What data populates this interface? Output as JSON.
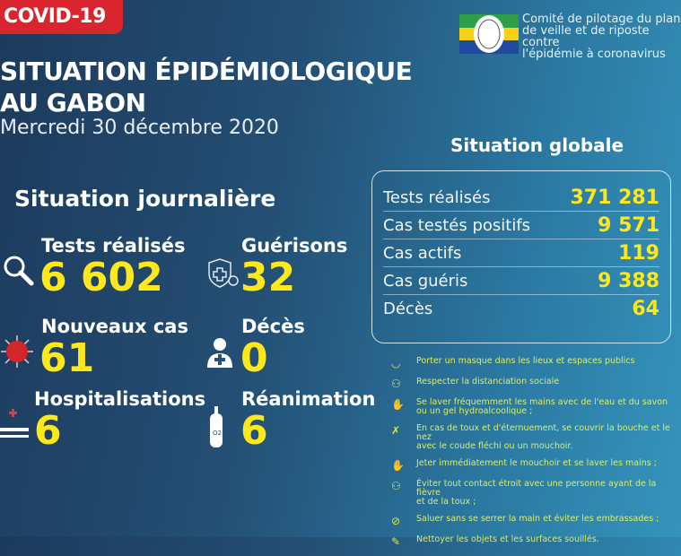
{
  "header": {
    "badge": "COVID-19",
    "title_line1": "SITUATION ÉPIDÉMIOLOGIQUE",
    "title_line2": "AU GABON",
    "date": "Mercredi 30 décembre 2020"
  },
  "org": {
    "line1": "Comité de pilotage du plan",
    "line2": "de veille et de riposte contre",
    "line3": "l'épidémie à coronavirus"
  },
  "daily": {
    "title": "Situation journalière",
    "items": [
      {
        "label": "Tests réalisés",
        "value": "6 602",
        "icon": "magnifier-icon"
      },
      {
        "label": "Guérisons",
        "value": "32",
        "icon": "shield-cross-icon"
      },
      {
        "label": "Nouveaux cas",
        "value": "61",
        "icon": "virus-icon"
      },
      {
        "label": "Décès",
        "value": "0",
        "icon": "person-cross-icon"
      },
      {
        "label": "Hospitalisations",
        "value": "6",
        "icon": "hospital-bed-icon"
      },
      {
        "label": "Réanimation",
        "value": "6",
        "icon": "oxygen-tank-icon"
      }
    ]
  },
  "global": {
    "title": "Situation globale",
    "rows": [
      {
        "label": "Tests réalisés",
        "value": "371 281"
      },
      {
        "label": "Cas testés positifs",
        "value": "9 571"
      },
      {
        "label": "Cas actifs",
        "value": "119"
      },
      {
        "label": "Cas guéris",
        "value": "9 388"
      },
      {
        "label": "Décès",
        "value": "64"
      }
    ]
  },
  "tips": [
    {
      "l1": "Porter un masque dans les lieux et espaces publics",
      "l2": ""
    },
    {
      "l1": "Respecter la distanciation sociale",
      "l2": ""
    },
    {
      "l1": "Se laver fréquemment les mains avec de l'eau et du savon",
      "l2": "ou un gel hydroalcoolique ;"
    },
    {
      "l1": "En cas de toux et d'éternuement, se couvrir la bouche et le nez",
      "l2": "avec le coude fléchi ou un mouchoir."
    },
    {
      "l1": "Jeter immédiatement le mouchoir et se laver les mains ;",
      "l2": ""
    },
    {
      "l1": "Éviter tout contact étroit avec une personne ayant de la fièvre",
      "l2": "et de la toux ;"
    },
    {
      "l1": "Saluer sans se serrer la main et éviter les embrassades ;",
      "l2": ""
    },
    {
      "l1": "Nettoyer les objets et les surfaces souillés.",
      "l2": ""
    }
  ],
  "colors": {
    "accent": "#ffe81a",
    "badge": "#d9252d",
    "flag_green": "#2e9e48",
    "flag_yellow": "#f7d117",
    "flag_blue": "#1f4aa0"
  }
}
